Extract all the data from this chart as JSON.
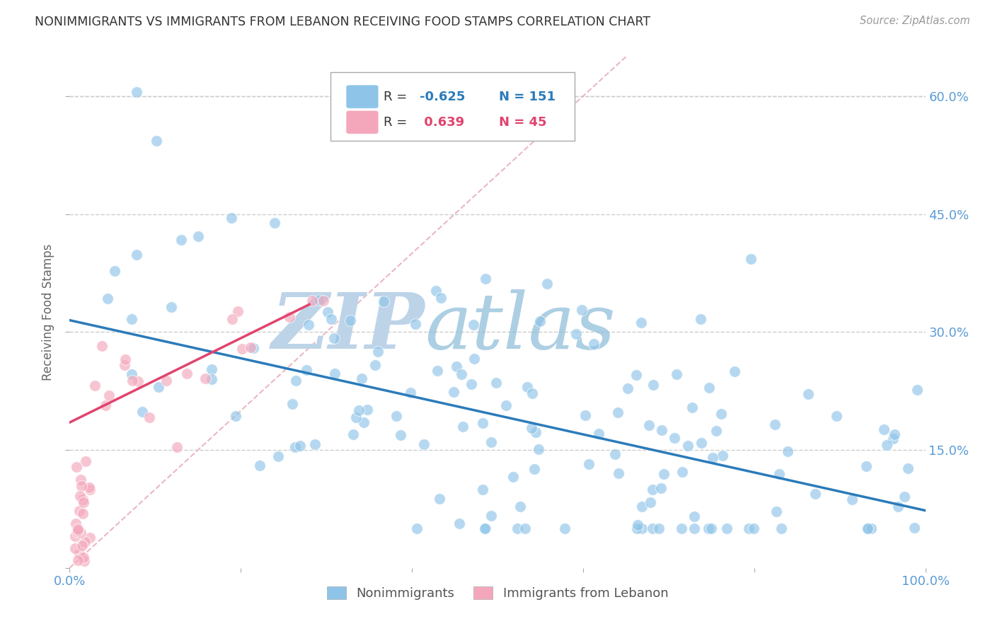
{
  "title": "NONIMMIGRANTS VS IMMIGRANTS FROM LEBANON RECEIVING FOOD STAMPS CORRELATION CHART",
  "source": "Source: ZipAtlas.com",
  "ylabel": "Receiving Food Stamps",
  "watermark_zip": "ZIP",
  "watermark_atlas": "atlas",
  "xmin": 0.0,
  "xmax": 1.0,
  "ymin": 0.0,
  "ymax": 0.65,
  "yticks": [
    0.0,
    0.15,
    0.3,
    0.45,
    0.6
  ],
  "ytick_labels": [
    "",
    "15.0%",
    "30.0%",
    "45.0%",
    "60.0%"
  ],
  "xticks": [
    0.0,
    0.2,
    0.4,
    0.6,
    0.8,
    1.0
  ],
  "xtick_labels": [
    "0.0%",
    "",
    "",
    "",
    "",
    "100.0%"
  ],
  "color_nonimm": "#8ec4e8",
  "color_imm": "#f4a7bb",
  "color_line_nonimm": "#2b7bba",
  "color_line_imm": "#e0446e",
  "color_diag": "#e8b0bb",
  "background_color": "#ffffff",
  "grid_color": "#cccccc",
  "title_color": "#333333",
  "tick_label_color": "#5b9bd5",
  "watermark_color_zip": "#bdd3e8",
  "watermark_color_atlas": "#8abbd8",
  "nonimm_line_x": [
    0.0,
    1.0
  ],
  "nonimm_line_y": [
    0.315,
    0.073
  ],
  "imm_line_x": [
    0.0,
    0.28
  ],
  "imm_line_y": [
    0.185,
    0.335
  ],
  "diag_line_x": [
    0.0,
    0.65
  ],
  "diag_line_y": [
    0.0,
    0.65
  ],
  "figsize": [
    14.06,
    8.92
  ],
  "dpi": 100
}
